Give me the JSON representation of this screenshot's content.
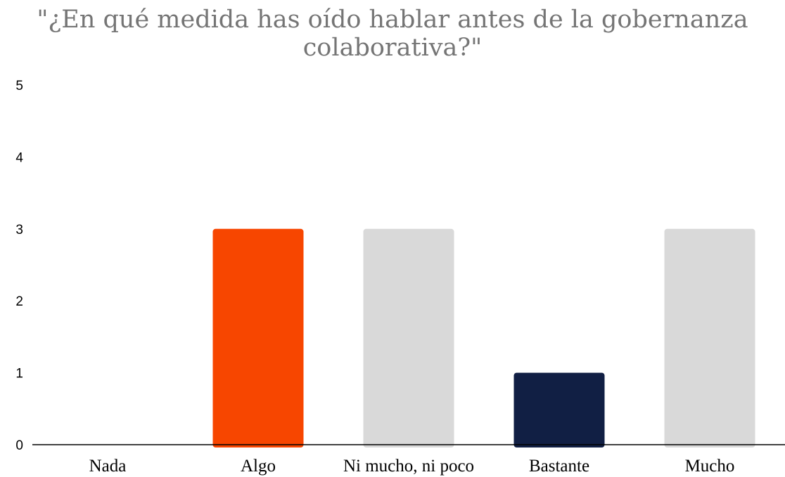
{
  "chart_data": {
    "type": "bar",
    "title_lines": [
      "\"¿En qué medida has oído hablar antes de la gobernanza",
      "colaborativa?\""
    ],
    "categories": [
      "Nada",
      "Algo",
      "Ni mucho, ni poco",
      "Bastante",
      "Mucho"
    ],
    "values": [
      0,
      3,
      3,
      1,
      3
    ],
    "colors": [
      "#d9d9d9",
      "#f74600",
      "#d9d9d9",
      "#111f44",
      "#d9d9d9"
    ],
    "ylim": [
      0,
      5
    ],
    "yticks": [
      "0",
      "1",
      "2",
      "3",
      "4",
      "5"
    ],
    "xlabel": "",
    "ylabel": "",
    "grid": false,
    "legend": "none"
  }
}
